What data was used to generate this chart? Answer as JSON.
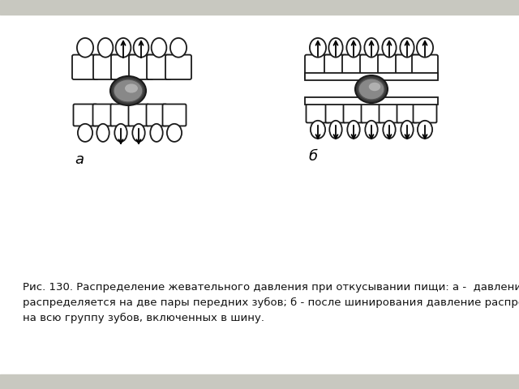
{
  "background_top": "#c8c8c0",
  "background_main": "#ffffff",
  "caption_lines": [
    "Рис. 130. Распределение жевательного давления при откусывании пищи: а -  давление",
    "распределяется на две пары передних зубов; б - после шинирования давление распределяется",
    "на всю группу зубов, включенных в шину."
  ],
  "label_a": "а",
  "label_b": "б",
  "fig_width": 6.4,
  "fig_height": 4.8,
  "dpi": 100
}
